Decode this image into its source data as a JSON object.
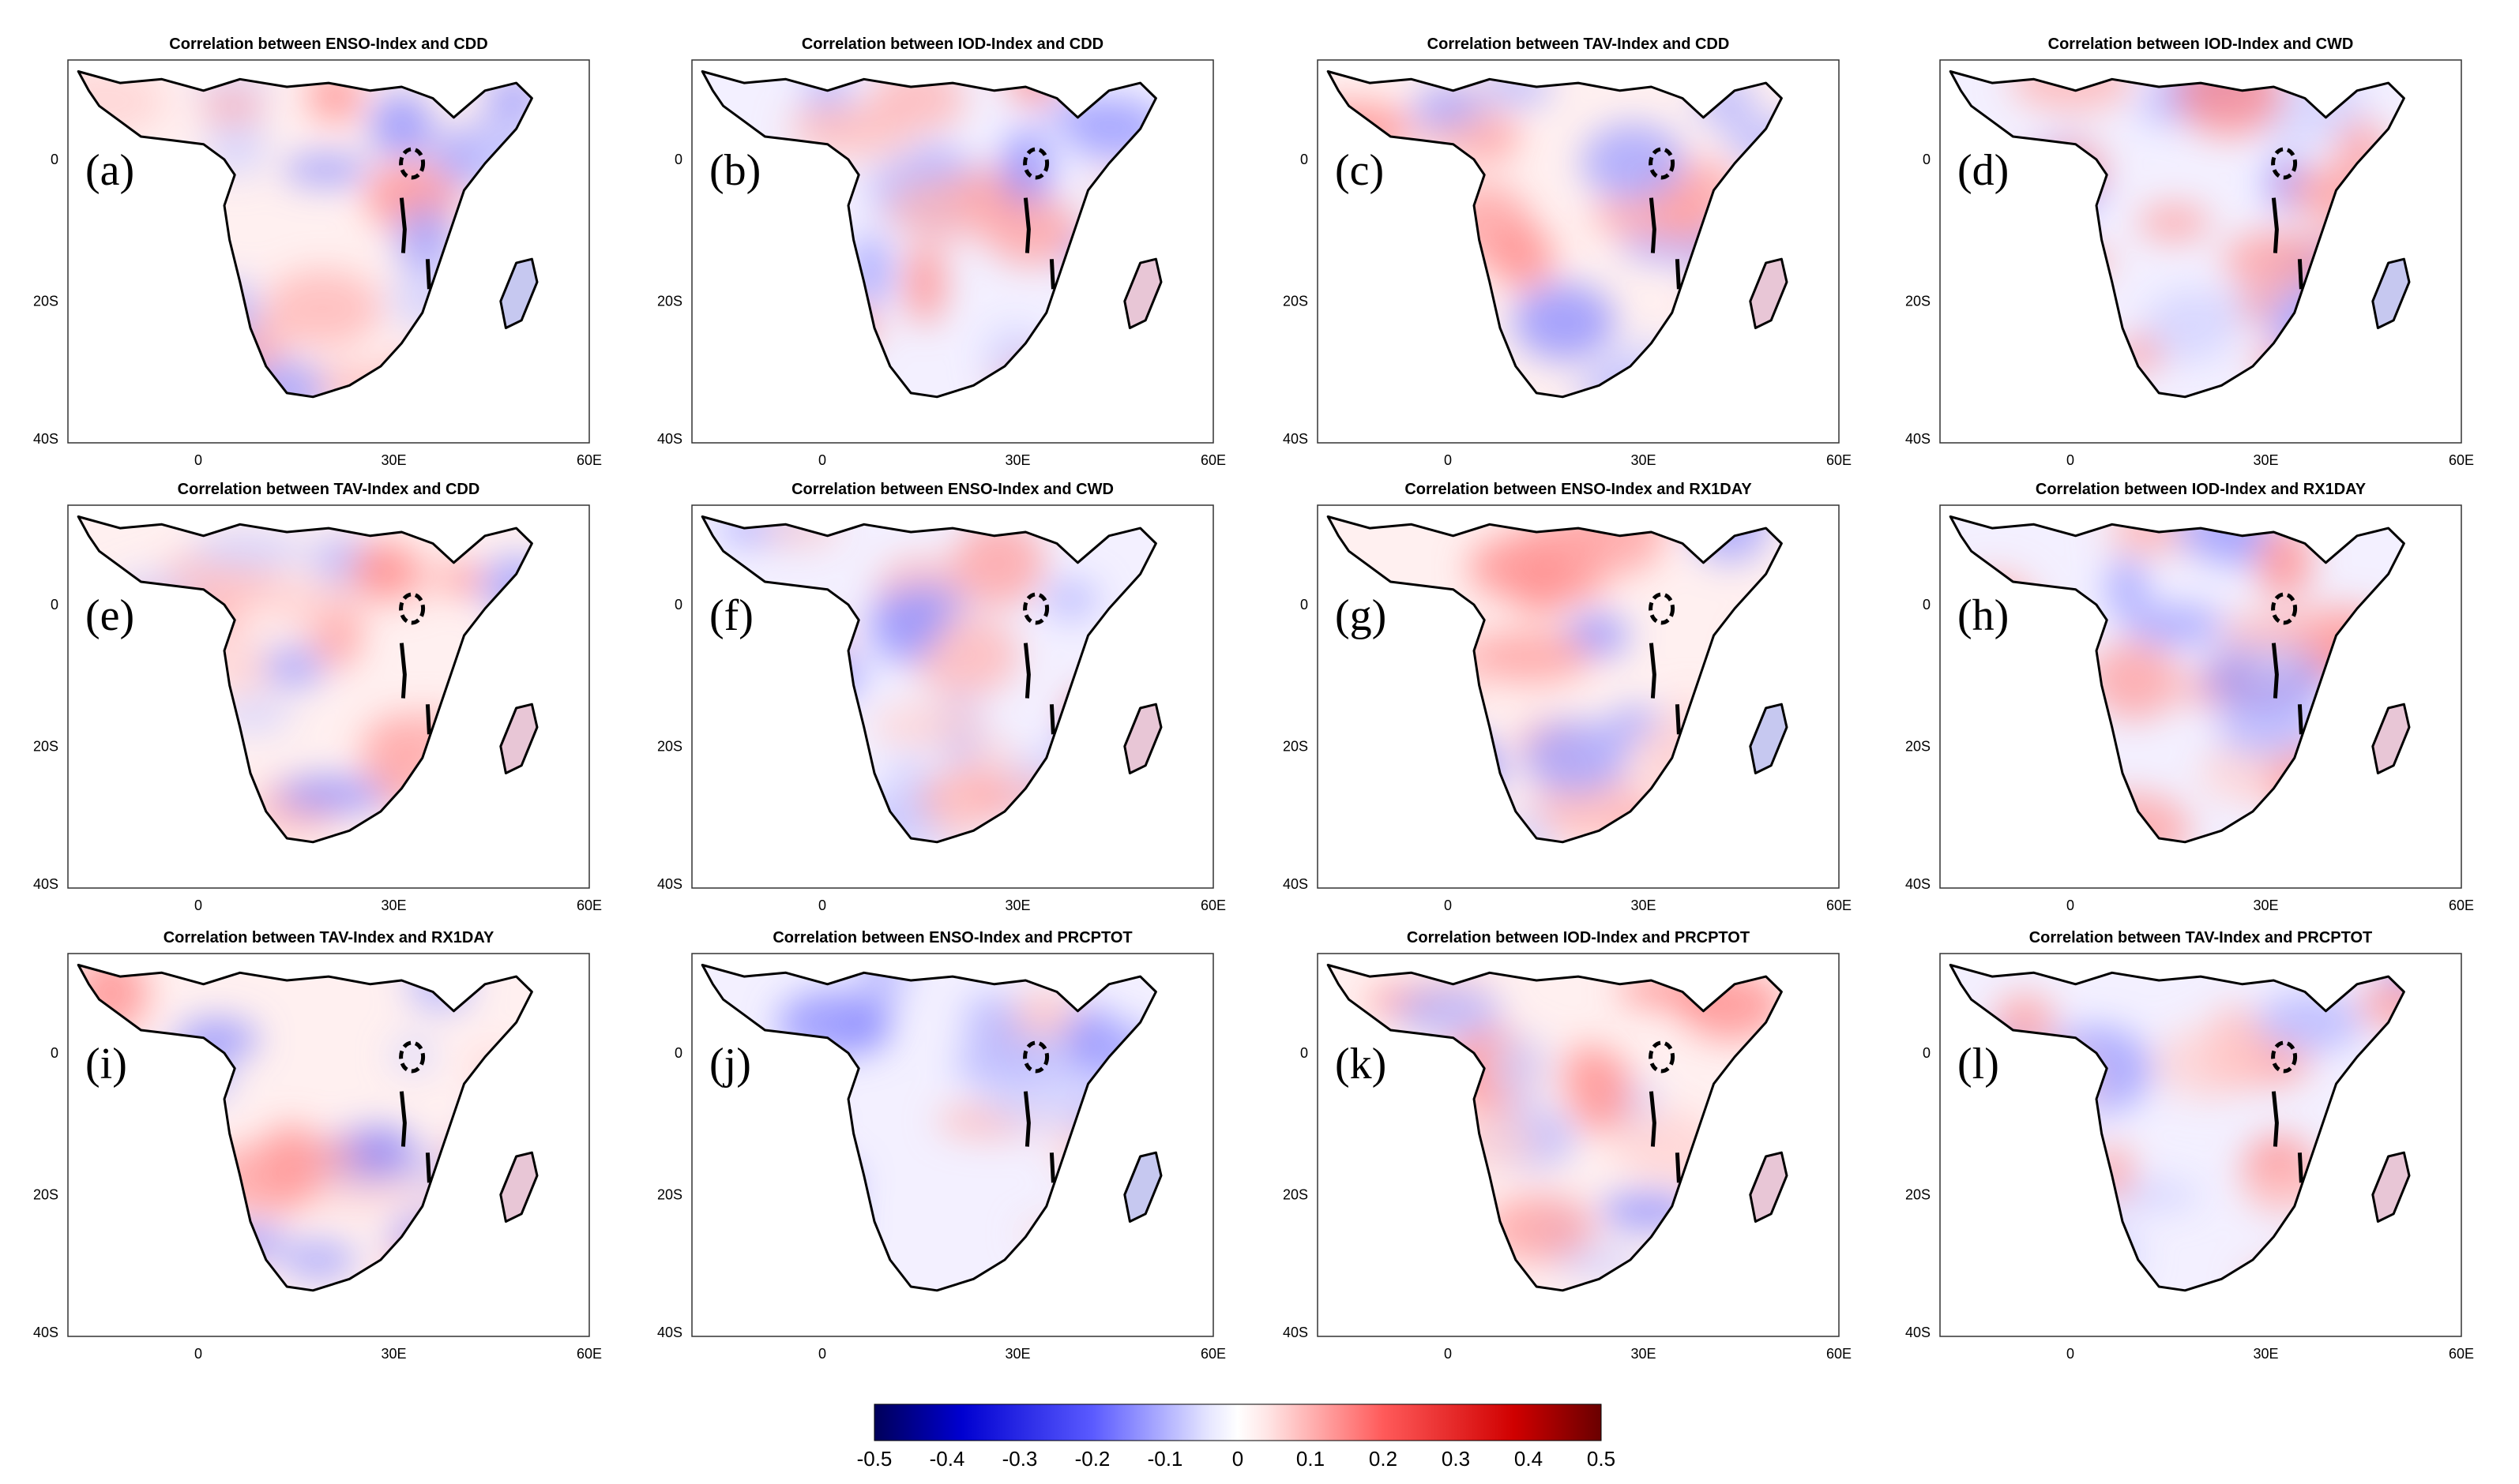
{
  "chart_data": {
    "type": "heatmap",
    "description": "Spatial correlation maps over Africa",
    "panels": [
      {
        "letter": "(a)",
        "title": "Correlation between ENSO-Index and CDD",
        "index": "ENSO",
        "variable": "CDD"
      },
      {
        "letter": "(b)",
        "title": "Correlation between IOD-Index and CDD",
        "index": "IOD",
        "variable": "CDD"
      },
      {
        "letter": "(c)",
        "title": "Correlation between TAV-Index and CDD",
        "index": "TAV",
        "variable": "CDD"
      },
      {
        "letter": "(d)",
        "title": "Correlation between IOD-Index and CWD",
        "index": "IOD",
        "variable": "CWD"
      },
      {
        "letter": "(e)",
        "title": "Correlation between TAV-Index and CDD",
        "index": "TAV",
        "variable": "CDD"
      },
      {
        "letter": "(f)",
        "title": "Correlation between ENSO-Index and CWD",
        "index": "ENSO",
        "variable": "CWD"
      },
      {
        "letter": "(g)",
        "title": "Correlation between ENSO-Index and RX1DAY",
        "index": "ENSO",
        "variable": "RX1DAY"
      },
      {
        "letter": "(h)",
        "title": "Correlation between IOD-Index and RX1DAY",
        "index": "IOD",
        "variable": "RX1DAY"
      },
      {
        "letter": "(i)",
        "title": "Correlation between TAV-Index and RX1DAY",
        "index": "TAV",
        "variable": "RX1DAY"
      },
      {
        "letter": "(j)",
        "title": "Correlation between ENSO-Index and PRCPTOT",
        "index": "ENSO",
        "variable": "PRCPTOT"
      },
      {
        "letter": "(k)",
        "title": "Correlation between IOD-Index and PRCPTOT",
        "index": "IOD",
        "variable": "PRCPTOT"
      },
      {
        "letter": "(l)",
        "title": "Correlation between TAV-Index and PRCPTOT",
        "index": "TAV",
        "variable": "PRCPTOT"
      }
    ],
    "x_ticks": [
      "0",
      "30E",
      "60E"
    ],
    "y_ticks": [
      "0",
      "20S",
      "40S"
    ],
    "lon_range": [
      -20,
      60
    ],
    "lat_range": [
      -40,
      15
    ],
    "colorbar": {
      "min": -0.5,
      "max": 0.5,
      "ticks": [
        "-0.5",
        "-0.4",
        "-0.3",
        "-0.2",
        "-0.1",
        "0",
        "0.1",
        "0.2",
        "0.3",
        "0.4",
        "0.5"
      ],
      "colors": {
        "low": "#000080",
        "mid": "#ffffff",
        "high": "#800000"
      }
    }
  }
}
